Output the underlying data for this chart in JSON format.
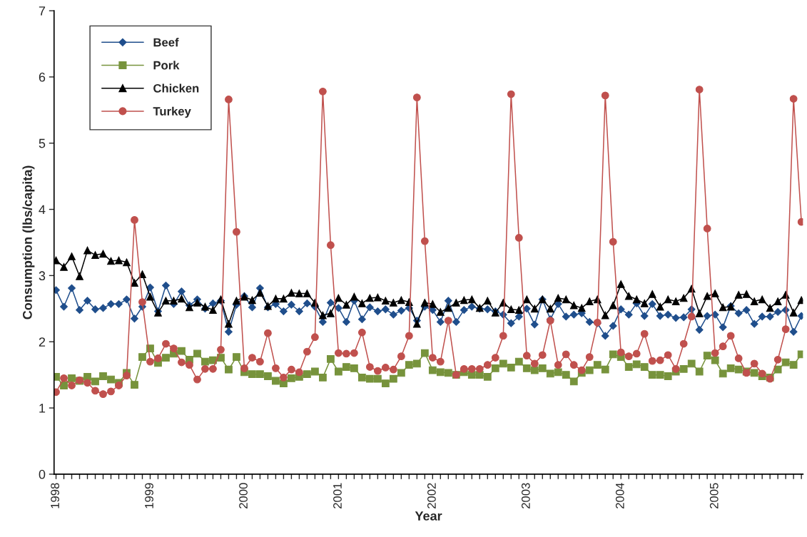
{
  "chart_data": {
    "type": "line",
    "xlabel": "Year",
    "ylabel": "Consumption (lbs/capita)",
    "categories": [
      "1998",
      null,
      null,
      null,
      null,
      null,
      null,
      null,
      null,
      null,
      null,
      null,
      "1999",
      null,
      null,
      null,
      null,
      null,
      null,
      null,
      null,
      null,
      null,
      null,
      "2000",
      null,
      null,
      null,
      null,
      null,
      null,
      null,
      null,
      null,
      null,
      null,
      "2001",
      null,
      null,
      null,
      null,
      null,
      null,
      null,
      null,
      null,
      null,
      null,
      "2002",
      null,
      null,
      null,
      null,
      null,
      null,
      null,
      null,
      null,
      null,
      null,
      "2003",
      null,
      null,
      null,
      null,
      null,
      null,
      null,
      null,
      null,
      null,
      null,
      "2004",
      null,
      null,
      null,
      null,
      null,
      null,
      null,
      null,
      null,
      null,
      null,
      "2005",
      null,
      null,
      null,
      null,
      null,
      null,
      null,
      null,
      null,
      null,
      null
    ],
    "ylim": [
      0,
      7
    ],
    "yticks": [
      0,
      1,
      2,
      3,
      4,
      5,
      6,
      7
    ],
    "grid": false,
    "legend": "top left",
    "line_style": "solid",
    "series": [
      {
        "name": "Beef",
        "color": "#1f4e8c",
        "marker": "diamond",
        "values": [
          2.78,
          2.53,
          2.81,
          2.48,
          2.62,
          2.49,
          2.51,
          2.57,
          2.57,
          2.64,
          2.35,
          2.53,
          2.82,
          2.46,
          2.85,
          2.57,
          2.76,
          2.55,
          2.64,
          2.5,
          2.58,
          2.62,
          2.15,
          2.56,
          2.69,
          2.52,
          2.81,
          2.52,
          2.57,
          2.46,
          2.56,
          2.46,
          2.58,
          2.53,
          2.3,
          2.59,
          2.51,
          2.3,
          2.62,
          2.34,
          2.52,
          2.46,
          2.49,
          2.41,
          2.47,
          2.51,
          2.32,
          2.53,
          2.48,
          2.3,
          2.62,
          2.3,
          2.48,
          2.53,
          2.5,
          2.49,
          2.46,
          2.41,
          2.28,
          2.38,
          2.5,
          2.26,
          2.64,
          2.34,
          2.57,
          2.38,
          2.41,
          2.43,
          2.3,
          2.28,
          2.09,
          2.24,
          2.49,
          2.41,
          2.58,
          2.39,
          2.57,
          2.39,
          2.41,
          2.36,
          2.37,
          2.49,
          2.18,
          2.39,
          2.41,
          2.22,
          2.54,
          2.43,
          2.48,
          2.27,
          2.38,
          2.38,
          2.45,
          2.48,
          2.15,
          2.39
        ]
      },
      {
        "name": "Pork",
        "color": "#77933c",
        "marker": "square",
        "values": [
          1.47,
          1.34,
          1.45,
          1.41,
          1.47,
          1.4,
          1.48,
          1.43,
          1.38,
          1.53,
          1.35,
          1.77,
          1.9,
          1.68,
          1.76,
          1.82,
          1.86,
          1.73,
          1.82,
          1.7,
          1.72,
          1.76,
          1.58,
          1.77,
          1.54,
          1.51,
          1.51,
          1.48,
          1.41,
          1.37,
          1.45,
          1.47,
          1.51,
          1.55,
          1.46,
          1.74,
          1.55,
          1.62,
          1.6,
          1.46,
          1.44,
          1.44,
          1.37,
          1.44,
          1.53,
          1.65,
          1.67,
          1.83,
          1.57,
          1.54,
          1.53,
          1.5,
          1.54,
          1.5,
          1.5,
          1.47,
          1.6,
          1.67,
          1.61,
          1.7,
          1.6,
          1.57,
          1.6,
          1.52,
          1.54,
          1.5,
          1.4,
          1.53,
          1.57,
          1.65,
          1.58,
          1.81,
          1.77,
          1.62,
          1.66,
          1.62,
          1.5,
          1.5,
          1.48,
          1.55,
          1.59,
          1.67,
          1.55,
          1.79,
          1.72,
          1.52,
          1.6,
          1.58,
          1.55,
          1.53,
          1.48,
          1.46,
          1.58,
          1.69,
          1.65,
          1.81
        ]
      },
      {
        "name": "Chicken",
        "color": "#000000",
        "marker": "triangle",
        "values": [
          3.23,
          3.13,
          3.29,
          2.99,
          3.38,
          3.31,
          3.33,
          3.22,
          3.23,
          3.2,
          2.89,
          3.02,
          2.68,
          2.44,
          2.62,
          2.62,
          2.65,
          2.52,
          2.59,
          2.53,
          2.48,
          2.64,
          2.27,
          2.62,
          2.68,
          2.63,
          2.74,
          2.54,
          2.65,
          2.65,
          2.74,
          2.73,
          2.73,
          2.59,
          2.4,
          2.43,
          2.66,
          2.56,
          2.68,
          2.58,
          2.66,
          2.67,
          2.62,
          2.59,
          2.63,
          2.6,
          2.27,
          2.59,
          2.57,
          2.45,
          2.51,
          2.59,
          2.63,
          2.64,
          2.51,
          2.62,
          2.44,
          2.59,
          2.49,
          2.48,
          2.64,
          2.5,
          2.64,
          2.5,
          2.66,
          2.64,
          2.55,
          2.51,
          2.61,
          2.64,
          2.4,
          2.55,
          2.87,
          2.69,
          2.64,
          2.58,
          2.72,
          2.53,
          2.64,
          2.61,
          2.66,
          2.8,
          2.43,
          2.69,
          2.73,
          2.52,
          2.53,
          2.71,
          2.72,
          2.61,
          2.64,
          2.51,
          2.61,
          2.71,
          2.44,
          2.63
        ]
      },
      {
        "name": "Turkey",
        "color": "#c0504d",
        "marker": "circle",
        "values": [
          1.24,
          1.45,
          1.34,
          1.42,
          1.38,
          1.26,
          1.21,
          1.25,
          1.34,
          1.49,
          3.84,
          2.6,
          1.7,
          1.75,
          1.97,
          1.9,
          1.69,
          1.65,
          1.43,
          1.59,
          1.59,
          1.88,
          5.66,
          3.66,
          1.6,
          1.76,
          1.7,
          2.13,
          1.6,
          1.46,
          1.58,
          1.54,
          1.85,
          2.07,
          5.78,
          3.46,
          1.83,
          1.82,
          1.83,
          2.14,
          1.62,
          1.56,
          1.61,
          1.58,
          1.78,
          2.09,
          5.69,
          3.52,
          1.76,
          1.7,
          2.32,
          1.5,
          1.59,
          1.59,
          1.59,
          1.65,
          1.76,
          2.09,
          5.74,
          3.57,
          1.79,
          1.67,
          1.8,
          2.32,
          1.65,
          1.81,
          1.65,
          1.57,
          1.77,
          2.29,
          5.72,
          3.51,
          1.84,
          1.78,
          1.82,
          2.12,
          1.71,
          1.72,
          1.8,
          1.59,
          1.97,
          2.38,
          5.81,
          3.71,
          1.83,
          1.93,
          2.09,
          1.75,
          1.53,
          1.67,
          1.52,
          1.44,
          1.73,
          2.19,
          5.67,
          3.81
        ]
      }
    ]
  }
}
